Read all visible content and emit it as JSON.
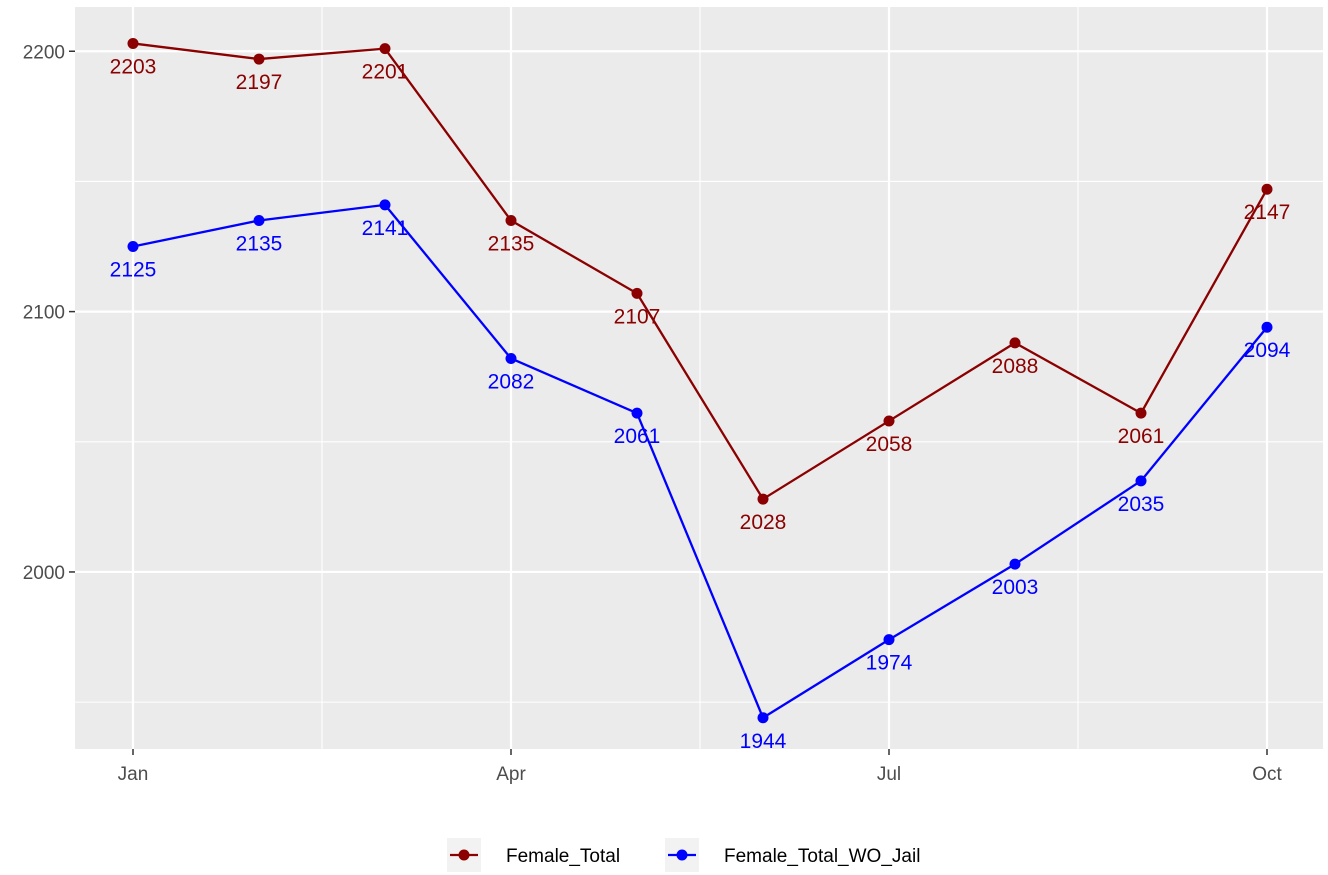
{
  "chart_data": {
    "type": "line",
    "x": [
      "2023-01",
      "2023-02",
      "2023-03",
      "2023-04",
      "2023-05",
      "2023-06",
      "2023-07",
      "2023-08",
      "2023-09",
      "2023-10"
    ],
    "x_ticks": [
      "Jan",
      "Apr",
      "Jul",
      "Oct"
    ],
    "y_ticks": [
      "2000",
      "2100",
      "2200"
    ],
    "ylim": [
      1932,
      2217
    ],
    "title": "",
    "xlabel": "",
    "ylabel": "",
    "grid": true,
    "legend_position": "bottom",
    "series": [
      {
        "name": "Female_Total",
        "color": "#8B0000",
        "values": [
          2203,
          2197,
          2201,
          2135,
          2107,
          2028,
          2058,
          2088,
          2061,
          2147
        ]
      },
      {
        "name": "Female_Total_WO_Jail",
        "color": "#0000FF",
        "values": [
          2125,
          2135,
          2141,
          2082,
          2061,
          1944,
          1974,
          2003,
          2035,
          2094
        ]
      }
    ]
  }
}
